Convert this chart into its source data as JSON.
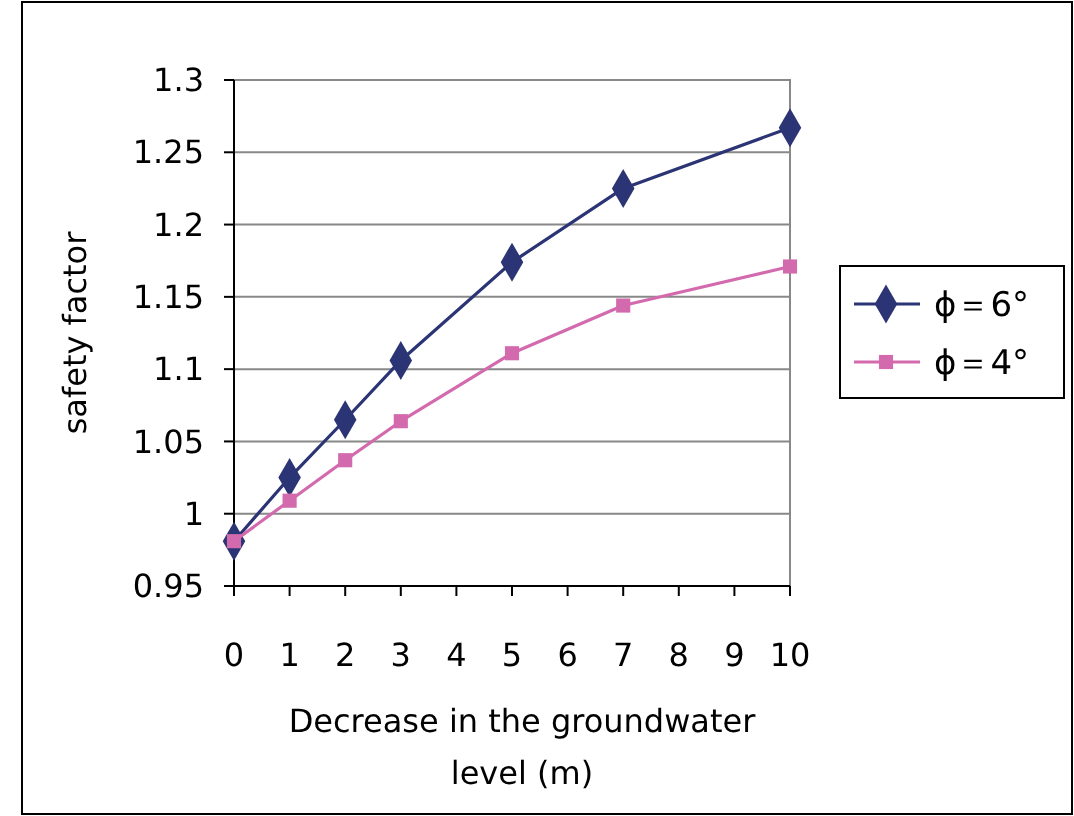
{
  "chart_data": {
    "type": "line",
    "xlabel": "Decrease in the groundwater level (m)",
    "ylabel": "safety factor",
    "xlim": [
      0,
      10
    ],
    "xticks": [
      0,
      1,
      2,
      3,
      4,
      5,
      6,
      7,
      8,
      9,
      10
    ],
    "ylim": [
      0.95,
      1.3
    ],
    "yticks": [
      0.95,
      1,
      1.05,
      1.1,
      1.15,
      1.2,
      1.25,
      1.3
    ],
    "grid": "y",
    "legend": "right",
    "series": [
      {
        "name": "ϕ＝6°",
        "color": "#2b3474",
        "marker": "diamond",
        "x": [
          0,
          1,
          2,
          3,
          5,
          7,
          10
        ],
        "values": [
          0.981,
          1.025,
          1.065,
          1.106,
          1.174,
          1.225,
          1.267
        ]
      },
      {
        "name": "ϕ＝4°",
        "color": "#d36aae",
        "marker": "square",
        "x": [
          0,
          1,
          2,
          3,
          5,
          7,
          10
        ],
        "values": [
          0.981,
          1.009,
          1.037,
          1.064,
          1.111,
          1.144,
          1.171
        ]
      }
    ]
  }
}
